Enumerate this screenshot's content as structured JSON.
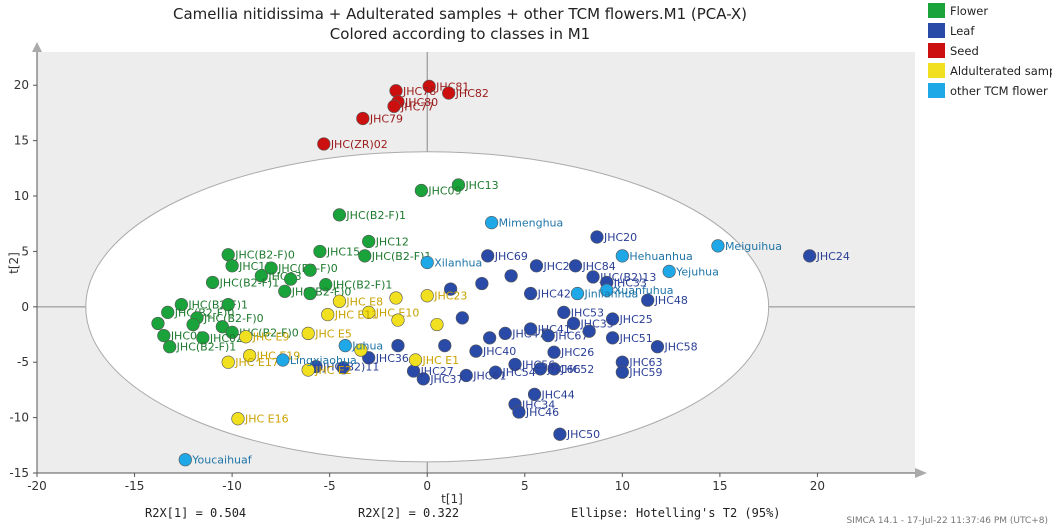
{
  "chart_data": {
    "type": "scatter",
    "title": "Camellia nitidissima + Adulterated samples + other TCM flowers.M1 (PCA-X)",
    "subtitle": "Colored according to classes in M1",
    "xlabel": "t[1]",
    "ylabel": "t[2]",
    "xlim": [
      -20,
      25
    ],
    "ylim": [
      -15,
      23
    ],
    "xticks": [
      -20,
      -15,
      -10,
      -5,
      0,
      5,
      10,
      15,
      20
    ],
    "yticks": [
      -15,
      -10,
      -5,
      0,
      5,
      10,
      15,
      20
    ],
    "footer": {
      "r2x1": "R2X[1] = 0.504",
      "r2x2": "R2X[2] = 0.322",
      "ellipse": "Ellipse: Hotelling's T2 (95%)",
      "software": "SIMCA 14.1 - 17-Jul-22 11:37:46 PM (UTC+8)"
    },
    "ellipse": {
      "cx": 0,
      "cy": 0,
      "rx": 17.5,
      "ry": 14
    },
    "series": [
      {
        "name": "Flower",
        "color": "#1aa33a",
        "label_color": "#1e7a2e",
        "points": [
          {
            "x": 1.6,
            "y": 11,
            "label": "JHC13"
          },
          {
            "x": -0.3,
            "y": 10.5,
            "label": "JHC09"
          },
          {
            "x": -4.5,
            "y": 8.3,
            "label": "JHC(B2-F)1"
          },
          {
            "x": -3,
            "y": 5.9,
            "label": "JHC12"
          },
          {
            "x": -5.5,
            "y": 5,
            "label": "JHC15"
          },
          {
            "x": -3.2,
            "y": 4.6,
            "label": "JHC(B2-F)1"
          },
          {
            "x": -10.2,
            "y": 4.7,
            "label": "JHC(B2-F)0"
          },
          {
            "x": -10,
            "y": 3.7,
            "label": "JHC11"
          },
          {
            "x": -8,
            "y": 3.5,
            "label": "JHC(B2-F)0"
          },
          {
            "x": -6,
            "y": 3.3,
            "label": ""
          },
          {
            "x": -8.5,
            "y": 2.8,
            "label": "JHC03"
          },
          {
            "x": -7,
            "y": 2.5,
            "label": ""
          },
          {
            "x": -11,
            "y": 2.2,
            "label": "JHC(B2-F)1"
          },
          {
            "x": -5.2,
            "y": 2,
            "label": "JHC(B2-F)1"
          },
          {
            "x": -7.3,
            "y": 1.4,
            "label": "JHC(B2-F)0"
          },
          {
            "x": -6,
            "y": 1.2,
            "label": ""
          },
          {
            "x": -12.6,
            "y": 0.2,
            "label": "JHC(B2-F)1"
          },
          {
            "x": -10.2,
            "y": 0.2,
            "label": ""
          },
          {
            "x": -13.3,
            "y": -0.5,
            "label": "JHC(B2-F)0"
          },
          {
            "x": -11.8,
            "y": -1,
            "label": "JHC(B2-F)0"
          },
          {
            "x": -13.8,
            "y": -1.5,
            "label": ""
          },
          {
            "x": -12,
            "y": -1.6,
            "label": ""
          },
          {
            "x": -10.5,
            "y": -1.8,
            "label": ""
          },
          {
            "x": -13.5,
            "y": -2.6,
            "label": "JHC01"
          },
          {
            "x": -10,
            "y": -2.3,
            "label": "JHC(B2-F)0"
          },
          {
            "x": -11.5,
            "y": -2.8,
            "label": "JHC02"
          },
          {
            "x": -13.2,
            "y": -3.6,
            "label": "JHC(B2-F)1"
          }
        ]
      },
      {
        "name": "Leaf",
        "color": "#2a4aa8",
        "label_color": "#2a3f96",
        "points": [
          {
            "x": 19.6,
            "y": 4.6,
            "label": "JHC24"
          },
          {
            "x": 8.7,
            "y": 6.3,
            "label": "JHC20"
          },
          {
            "x": 3.1,
            "y": 4.6,
            "label": "JHC69"
          },
          {
            "x": 5.6,
            "y": 3.7,
            "label": "JHC21"
          },
          {
            "x": 7.6,
            "y": 3.7,
            "label": "JHC84"
          },
          {
            "x": 8.5,
            "y": 2.7,
            "label": "JHC(B2)13"
          },
          {
            "x": 9.2,
            "y": 2.2,
            "label": "JHC33"
          },
          {
            "x": 11.3,
            "y": 0.6,
            "label": "JHC48"
          },
          {
            "x": 5.3,
            "y": 1.2,
            "label": "JHC42"
          },
          {
            "x": 7,
            "y": -0.5,
            "label": "JHC53"
          },
          {
            "x": 9.5,
            "y": -1.1,
            "label": "JHC25"
          },
          {
            "x": 9.5,
            "y": -2.8,
            "label": "JHC51"
          },
          {
            "x": 11.8,
            "y": -3.6,
            "label": "JHC58"
          },
          {
            "x": 6.5,
            "y": -4.1,
            "label": "JHC26"
          },
          {
            "x": 10,
            "y": -5,
            "label": "JHC63"
          },
          {
            "x": 10,
            "y": -5.9,
            "label": "JHC59"
          },
          {
            "x": 6.5,
            "y": -5.6,
            "label": "JHC52"
          },
          {
            "x": 5.8,
            "y": -5.6,
            "label": "JHC66"
          },
          {
            "x": 4.5,
            "y": -5.2,
            "label": "JHC56"
          },
          {
            "x": 3.5,
            "y": -5.9,
            "label": "JHC54"
          },
          {
            "x": 2,
            "y": -6.2,
            "label": "JHC61"
          },
          {
            "x": -0.2,
            "y": -6.5,
            "label": "JHC37"
          },
          {
            "x": -0.7,
            "y": -5.8,
            "label": "JHC27"
          },
          {
            "x": -3,
            "y": -4.6,
            "label": "JHC36"
          },
          {
            "x": -5.7,
            "y": -5.4,
            "label": "JHC(B2)11"
          },
          {
            "x": -4.3,
            "y": -5.5,
            "label": ""
          },
          {
            "x": 5.5,
            "y": -7.9,
            "label": "JHC44"
          },
          {
            "x": 4.5,
            "y": -8.8,
            "label": "JHC34"
          },
          {
            "x": 4.7,
            "y": -9.5,
            "label": "JHC46"
          },
          {
            "x": 6.8,
            "y": -11.5,
            "label": "JHC50"
          },
          {
            "x": 4,
            "y": -2.4,
            "label": "JHC47"
          },
          {
            "x": 2.5,
            "y": -4,
            "label": "JHC40"
          },
          {
            "x": 1.8,
            "y": -1,
            "label": ""
          },
          {
            "x": 3.2,
            "y": -2.8,
            "label": ""
          },
          {
            "x": 5.3,
            "y": -2,
            "label": "JHC41"
          },
          {
            "x": 6.2,
            "y": -2.6,
            "label": "JHC67"
          },
          {
            "x": 1.2,
            "y": 1.6,
            "label": ""
          },
          {
            "x": 2.8,
            "y": 2.1,
            "label": ""
          },
          {
            "x": 4.3,
            "y": 2.8,
            "label": ""
          },
          {
            "x": 0.9,
            "y": -3.5,
            "label": ""
          },
          {
            "x": -1.5,
            "y": -3.5,
            "label": ""
          },
          {
            "x": 7.5,
            "y": -1.5,
            "label": "JHC35"
          },
          {
            "x": 8.3,
            "y": -2.2,
            "label": ""
          }
        ]
      },
      {
        "name": "Seed",
        "color": "#cc1010",
        "label_color": "#9b1b1b",
        "points": [
          {
            "x": 0.1,
            "y": 19.9,
            "label": "JHC81"
          },
          {
            "x": 1.1,
            "y": 19.3,
            "label": "JHC82"
          },
          {
            "x": -1.6,
            "y": 19.5,
            "label": "JHC78"
          },
          {
            "x": -1.5,
            "y": 18.5,
            "label": "JHC80"
          },
          {
            "x": -1.7,
            "y": 18.1,
            "label": "JHC77"
          },
          {
            "x": -3.3,
            "y": 17,
            "label": "JHC79"
          },
          {
            "x": -5.3,
            "y": 14.7,
            "label": "JHC(ZR)02"
          }
        ]
      },
      {
        "name": "Aldulterated sample",
        "color": "#f0e020",
        "label_color": "#c9a200",
        "points": [
          {
            "x": -4.5,
            "y": 0.5,
            "label": "JHC E8"
          },
          {
            "x": -1.6,
            "y": 0.8,
            "label": ""
          },
          {
            "x": 0,
            "y": 1,
            "label": "JHC23"
          },
          {
            "x": -3,
            "y": -0.5,
            "label": "JHC E10"
          },
          {
            "x": -5.1,
            "y": -0.7,
            "label": "JHC E11"
          },
          {
            "x": -6.1,
            "y": -2.4,
            "label": "JHC E5"
          },
          {
            "x": -3.4,
            "y": -3.9,
            "label": ""
          },
          {
            "x": -9.3,
            "y": -2.7,
            "label": "JHC E9"
          },
          {
            "x": -9.1,
            "y": -4.4,
            "label": "JHC E19"
          },
          {
            "x": -10.2,
            "y": -5,
            "label": "JHC E17"
          },
          {
            "x": -6.1,
            "y": -5.7,
            "label": "JHC E2"
          },
          {
            "x": -0.6,
            "y": -4.8,
            "label": "JHC E1"
          },
          {
            "x": -1.5,
            "y": -1.2,
            "label": ""
          },
          {
            "x": 0.5,
            "y": -1.6,
            "label": ""
          },
          {
            "x": -9.7,
            "y": -10.1,
            "label": "JHC E16"
          }
        ]
      },
      {
        "name": "other TCM flower",
        "color": "#1ea8e8",
        "label_color": "#1f75a8",
        "points": [
          {
            "x": 3.3,
            "y": 7.6,
            "label": "Mimenghua"
          },
          {
            "x": 0,
            "y": 4,
            "label": "Xilanhua"
          },
          {
            "x": 14.9,
            "y": 5.5,
            "label": "Meiguihua"
          },
          {
            "x": 10,
            "y": 4.6,
            "label": "Hehuanhua"
          },
          {
            "x": 12.4,
            "y": 3.2,
            "label": "Yejuhua"
          },
          {
            "x": 9.2,
            "y": 1.5,
            "label": "Xuanfuhua"
          },
          {
            "x": 7.7,
            "y": 1.2,
            "label": "Jinlianhua"
          },
          {
            "x": -4.2,
            "y": -3.5,
            "label": "Juhua"
          },
          {
            "x": -7.4,
            "y": -4.8,
            "label": "Lingxiaohua"
          },
          {
            "x": -12.4,
            "y": -13.8,
            "label": "Youcaihuaf"
          }
        ]
      }
    ]
  }
}
